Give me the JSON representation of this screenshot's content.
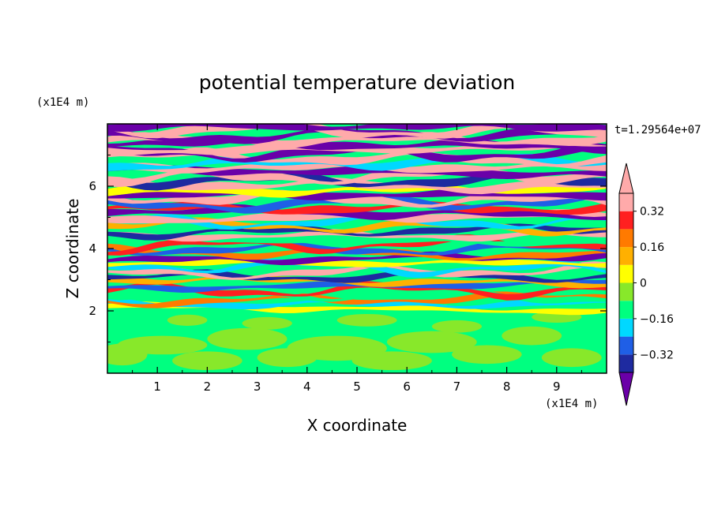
{
  "chart_data": {
    "type": "heatmap",
    "title": "potential temperature deviation",
    "xlabel": "X coordinate",
    "ylabel": "Z coordinate",
    "x_unit": "(x1E4 m)",
    "y_unit": "(x1E4 m)",
    "time_label": "t=1.29564e+07",
    "xlim": [
      0,
      10
    ],
    "ylim": [
      0,
      8
    ],
    "x_ticks": [
      "1",
      "2",
      "3",
      "4",
      "5",
      "6",
      "7",
      "8",
      "9"
    ],
    "y_ticks": [
      "2",
      "4",
      "6"
    ],
    "colorbar": {
      "tick_labels": [
        "0.32",
        "0.16",
        "0",
        "−0.16",
        "−0.32"
      ],
      "tick_values": [
        0.32,
        0.16,
        0,
        -0.16,
        -0.32
      ],
      "range": [
        -0.4,
        0.4
      ],
      "step": 0.08,
      "colors_low_to_high": [
        "#6a00a8",
        "#1e2aa0",
        "#1f5fe6",
        "#00d8ff",
        "#00ff80",
        "#88e82a",
        "#ffff00",
        "#ffb000",
        "#ff7a00",
        "#ff2020",
        "#ffaaaa"
      ]
    }
  }
}
